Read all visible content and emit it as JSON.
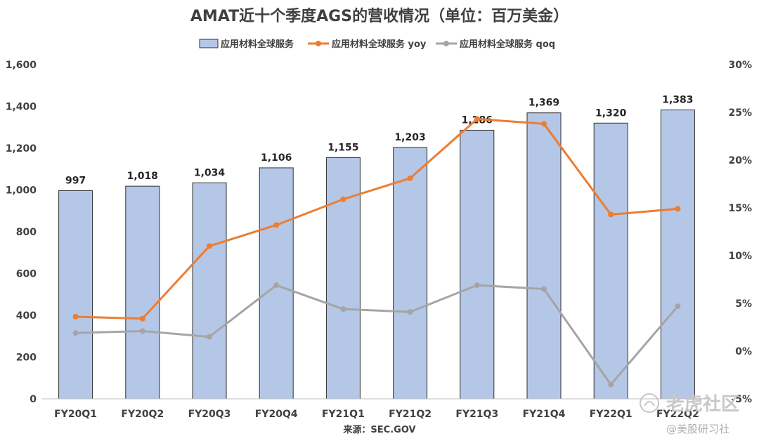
{
  "chart_data": {
    "type": "bar",
    "title": "AMAT近十个季度AGS的营收情况（单位：百万美金）",
    "categories": [
      "FY20Q1",
      "FY20Q2",
      "FY20Q3",
      "FY20Q4",
      "FY21Q1",
      "FY21Q2",
      "FY21Q3",
      "FY21Q4",
      "FY22Q1",
      "FY22Q2"
    ],
    "series": [
      {
        "name": "应用材料全球服务",
        "type": "bar",
        "axis": "left",
        "color": "#b4c7e7",
        "values": [
          997,
          1018,
          1034,
          1106,
          1155,
          1203,
          1286,
          1369,
          1320,
          1383
        ],
        "labels": [
          "997",
          "1,018",
          "1,034",
          "1,106",
          "1,155",
          "1,203",
          "1,286",
          "1,369",
          "1,320",
          "1,383"
        ]
      },
      {
        "name": "应用材料全球服务 yoy",
        "type": "line",
        "axis": "right",
        "color": "#ed7d31",
        "values": [
          3.6,
          3.4,
          11.0,
          13.2,
          15.9,
          18.1,
          24.3,
          23.8,
          14.3,
          14.9
        ]
      },
      {
        "name": "应用材料全球服务 qoq",
        "type": "line",
        "axis": "right",
        "color": "#a5a5a5",
        "values": [
          1.9,
          2.1,
          1.5,
          6.9,
          4.4,
          4.1,
          6.9,
          6.5,
          -3.5,
          4.7
        ]
      }
    ],
    "ylim": [
      0,
      1600
    ],
    "y_ticks": [
      "0",
      "200",
      "400",
      "600",
      "800",
      "1,000",
      "1,200",
      "1,400",
      "1,600"
    ],
    "y2lim": [
      -5,
      30
    ],
    "y2_ticks": [
      "-5%",
      "0%",
      "5%",
      "10%",
      "15%",
      "20%",
      "25%",
      "30%"
    ],
    "legend_position": "top-center",
    "grid": false
  },
  "source": "来源：SEC.GOV",
  "watermark": {
    "brand": "老虎社区",
    "handle": "@美股研习社"
  }
}
